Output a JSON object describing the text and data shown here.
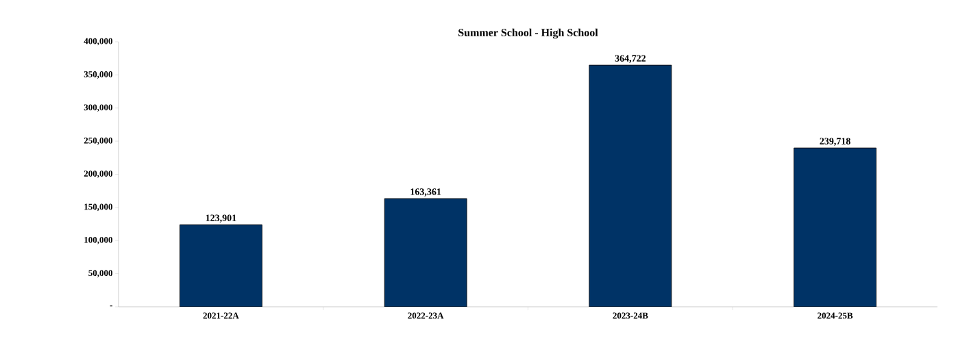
{
  "chart_data": {
    "type": "bar",
    "title": "Summer School - High School",
    "categories": [
      "2021-22A",
      "2022-23A",
      "2023-24B",
      "2024-25B"
    ],
    "values": [
      123901,
      163361,
      364722,
      239718
    ],
    "value_labels": [
      "123,901",
      "163,361",
      "364,722",
      "239,718"
    ],
    "color": "#003366",
    "ylim": [
      0,
      400000
    ],
    "yticks": [
      {
        "value": 0,
        "label": "-"
      },
      {
        "value": 50000,
        "label": "50,000"
      },
      {
        "value": 100000,
        "label": "100,000"
      },
      {
        "value": 150000,
        "label": "150,000"
      },
      {
        "value": 200000,
        "label": "200,000"
      },
      {
        "value": 250000,
        "label": "250,000"
      },
      {
        "value": 300000,
        "label": "300,000"
      },
      {
        "value": 350000,
        "label": "350,000"
      },
      {
        "value": 400000,
        "label": "400,000"
      }
    ],
    "grid": false
  }
}
